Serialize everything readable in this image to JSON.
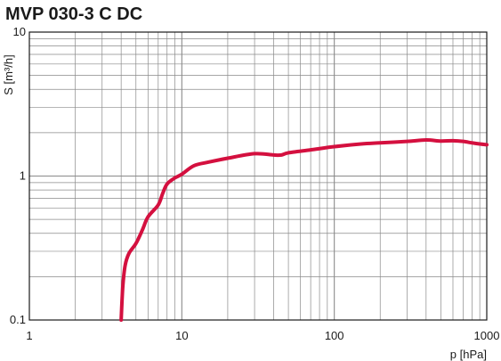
{
  "chart_data": {
    "type": "line",
    "title": "MVP 030-3 C DC",
    "xlabel": "p  [hPa]",
    "ylabel": "S [m³/h]",
    "x_scale": "log",
    "y_scale": "log",
    "xlim": [
      1,
      1000
    ],
    "ylim": [
      0.1,
      10
    ],
    "x_ticks": [
      {
        "value": 1,
        "label": "1"
      },
      {
        "value": 10,
        "label": "10"
      },
      {
        "value": 100,
        "label": "100"
      },
      {
        "value": 1000,
        "label": "1000"
      }
    ],
    "y_ticks": [
      {
        "value": 0.1,
        "label": "0.1"
      },
      {
        "value": 1,
        "label": "1"
      },
      {
        "value": 10,
        "label": "10"
      }
    ],
    "grid": true,
    "legend": "none",
    "line_color": "#d4103f",
    "grid_color": "#8a8a8a",
    "series": [
      {
        "x": [
          4,
          4.1,
          4.25,
          4.5,
          5,
          5.5,
          6,
          7,
          7.5,
          8,
          9,
          10,
          12,
          15,
          20,
          30,
          40,
          45,
          50,
          70,
          100,
          150,
          200,
          300,
          400,
          500,
          600,
          700,
          800,
          900,
          1000
        ],
        "y": [
          0.1,
          0.17,
          0.24,
          0.29,
          0.34,
          0.42,
          0.52,
          0.63,
          0.76,
          0.88,
          0.97,
          1.03,
          1.18,
          1.25,
          1.33,
          1.43,
          1.4,
          1.4,
          1.45,
          1.52,
          1.6,
          1.67,
          1.7,
          1.74,
          1.78,
          1.75,
          1.76,
          1.74,
          1.7,
          1.67,
          1.65
        ]
      }
    ]
  }
}
